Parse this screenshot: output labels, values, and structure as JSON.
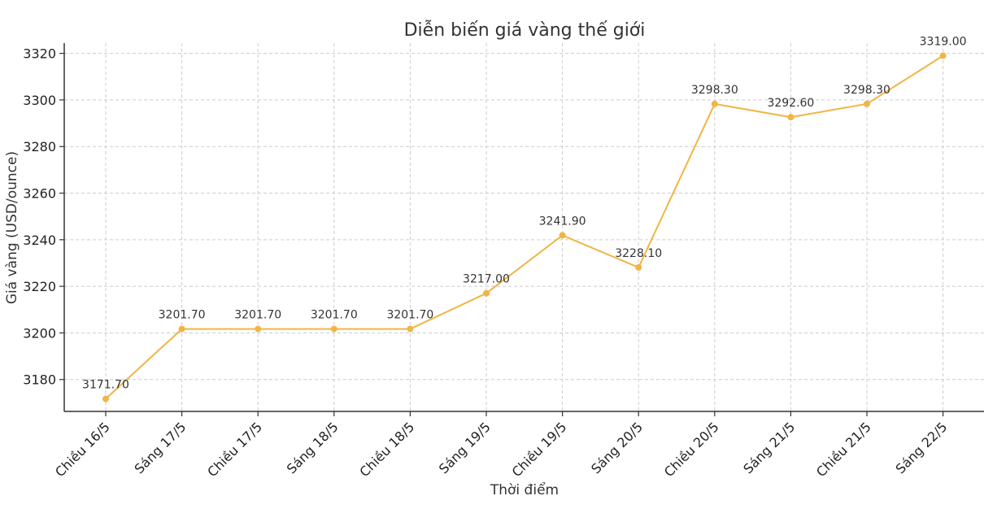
{
  "chart_data": {
    "type": "line",
    "title": "Diễn biến giá vàng thế giới",
    "xlabel": "Thời điểm",
    "ylabel": "Giá vàng (USD/ounce)",
    "categories": [
      "Chiều 16/5",
      "Sáng 17/5",
      "Chiều 17/5",
      "Sáng 18/5",
      "Chiều 18/5",
      "Sáng 19/5",
      "Chiều 19/5",
      "Sáng 20/5",
      "Chiều 20/5",
      "Sáng 21/5",
      "Chiều 21/5",
      "Sáng 22/5"
    ],
    "series": [
      {
        "values": [
          3171.7,
          3201.7,
          3201.7,
          3201.7,
          3201.7,
          3217.0,
          3241.9,
          3228.1,
          3298.3,
          3292.6,
          3298.3,
          3319.0
        ]
      }
    ],
    "data_labels": [
      "3171.70",
      "3201.70",
      "3201.70",
      "3201.70",
      "3201.70",
      "3217.00",
      "3241.90",
      "3228.10",
      "3298.30",
      "3292.60",
      "3298.30",
      "3319.00"
    ],
    "yticks": [
      3180,
      3200,
      3220,
      3240,
      3260,
      3280,
      3300,
      3320
    ],
    "ylim": [
      3166.3,
      3324.4
    ],
    "grid": true,
    "color": "#f0b544"
  }
}
